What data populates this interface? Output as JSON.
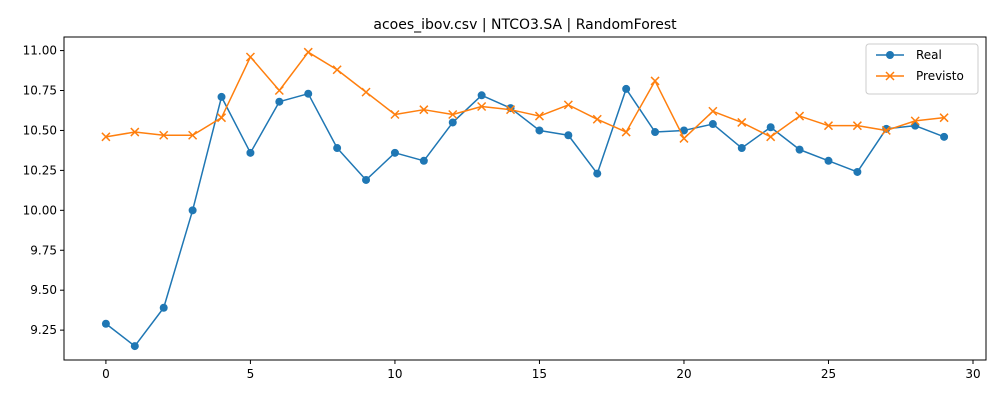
{
  "chart_data": {
    "type": "line",
    "title": "acoes_ibov.csv | NTCO3.SA | RandomForest",
    "xlabel": "",
    "ylabel": "",
    "xlim": [
      -1.45,
      30.45
    ],
    "ylim": [
      9.063,
      11.085
    ],
    "xticks": [
      0,
      5,
      10,
      15,
      20,
      25,
      30
    ],
    "yticks": [
      9.25,
      9.5,
      9.75,
      10.0,
      10.25,
      10.5,
      10.75,
      11.0
    ],
    "ytick_labels": [
      "9.25",
      "9.50",
      "9.75",
      "10.00",
      "10.25",
      "10.50",
      "10.75",
      "11.00"
    ],
    "grid": false,
    "legend_position": "top-right",
    "x": [
      0,
      1,
      2,
      3,
      4,
      5,
      6,
      7,
      8,
      9,
      10,
      11,
      12,
      13,
      14,
      15,
      16,
      17,
      18,
      19,
      20,
      21,
      22,
      23,
      24,
      25,
      26,
      27,
      28,
      29
    ],
    "series": [
      {
        "name": "Real",
        "color": "#1f77b4",
        "marker": "circle",
        "values": [
          9.29,
          9.15,
          9.39,
          10.0,
          10.71,
          10.36,
          10.68,
          10.73,
          10.39,
          10.19,
          10.36,
          10.31,
          10.55,
          10.72,
          10.64,
          10.5,
          10.47,
          10.23,
          10.76,
          10.49,
          10.5,
          10.54,
          10.39,
          10.52,
          10.38,
          10.31,
          10.24,
          10.51,
          10.53,
          10.46
        ]
      },
      {
        "name": "Previsto",
        "color": "#ff7f0e",
        "marker": "x",
        "values": [
          10.46,
          10.49,
          10.47,
          10.47,
          10.58,
          10.96,
          10.75,
          10.99,
          10.88,
          10.74,
          10.6,
          10.63,
          10.6,
          10.65,
          10.63,
          10.59,
          10.66,
          10.57,
          10.49,
          10.81,
          10.45,
          10.62,
          10.55,
          10.46,
          10.59,
          10.53,
          10.53,
          10.5,
          10.56,
          10.58
        ]
      }
    ]
  }
}
